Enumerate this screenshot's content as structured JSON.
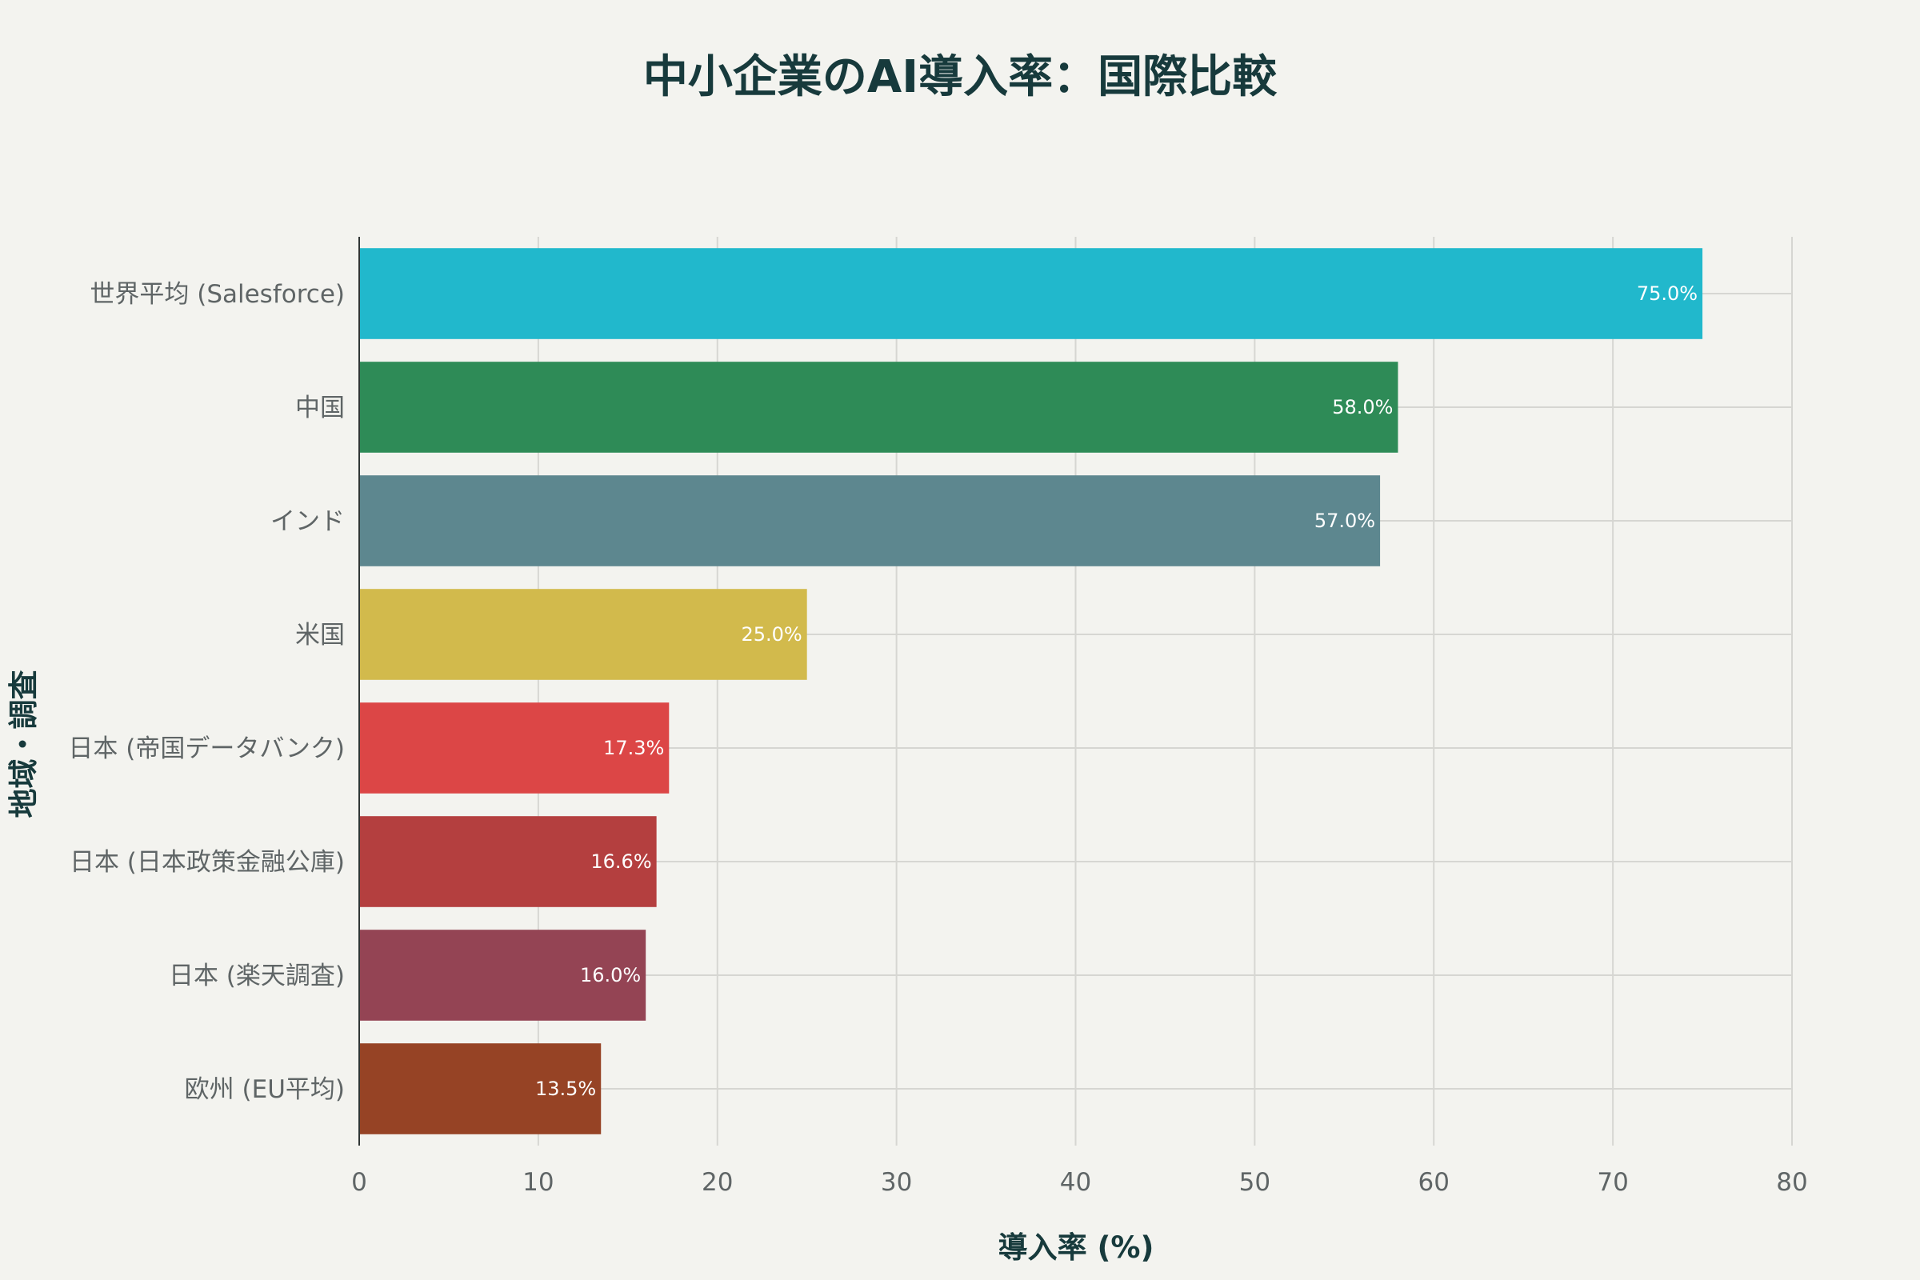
{
  "chart_data": {
    "type": "bar",
    "orientation": "horizontal",
    "title": "中小企業のAI導入率：国際比較",
    "xlabel": "導入率 (%)",
    "ylabel": "地域・調査",
    "xlim": [
      0,
      80
    ],
    "xticks": [
      0,
      10,
      20,
      30,
      40,
      50,
      60,
      70,
      80
    ],
    "grid": true,
    "categories": [
      "世界平均 (Salesforce)",
      "中国",
      "インド",
      "米国",
      "日本 (帝国データバンク)",
      "日本 (日本政策金融公庫)",
      "日本 (楽天調査)",
      "欧州 (EU平均)"
    ],
    "values": [
      75.0,
      58.0,
      57.0,
      25.0,
      17.3,
      16.6,
      16.0,
      13.5
    ],
    "value_labels": [
      "75.0%",
      "58.0%",
      "57.0%",
      "25.0%",
      "17.3%",
      "16.6%",
      "16.0%",
      "13.5%"
    ],
    "colors": [
      "#21b8cc",
      "#2e8b57",
      "#5d878f",
      "#d2ba4c",
      "#dc4646",
      "#b43f3f",
      "#944454",
      "#964325"
    ]
  }
}
